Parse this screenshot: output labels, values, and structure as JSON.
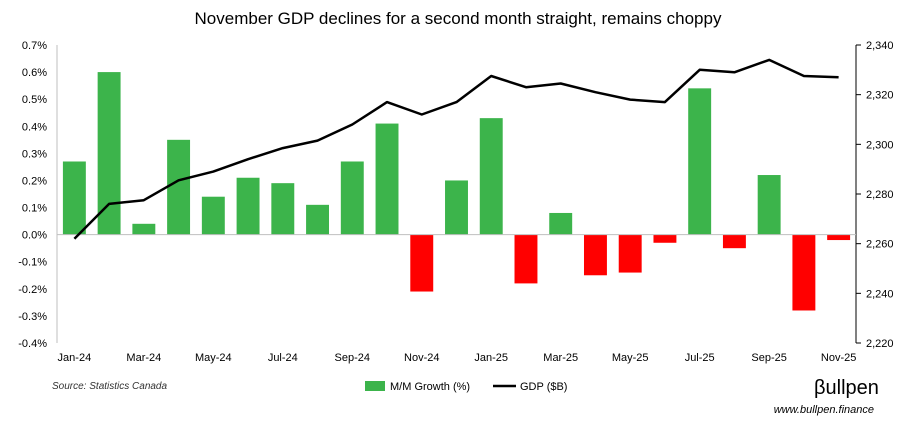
{
  "chart_data": {
    "type": "bar+line",
    "title": "November GDP declines for a second month straight, remains choppy",
    "categories": [
      "Jan-24",
      "Feb-24",
      "Mar-24",
      "Apr-24",
      "May-24",
      "Jun-24",
      "Jul-24",
      "Aug-24",
      "Sep-24",
      "Oct-24",
      "Nov-24",
      "Dec-24",
      "Jan-25",
      "Feb-25",
      "Mar-25",
      "Apr-25",
      "May-25",
      "Jun-25",
      "Jul-25",
      "Aug-25",
      "Sep-25",
      "Oct-25",
      "Nov-25"
    ],
    "x_tick_labels": [
      "Jan-24",
      "Mar-24",
      "May-24",
      "Jul-24",
      "Sep-24",
      "Nov-24",
      "Jan-25",
      "Mar-25",
      "May-25",
      "Jul-25",
      "Sep-25",
      "Nov-25"
    ],
    "series": [
      {
        "name": "M/M Growth (%)",
        "type": "bar",
        "axis": "left",
        "values": [
          0.27,
          0.6,
          0.04,
          0.35,
          0.14,
          0.21,
          0.19,
          0.11,
          0.27,
          0.41,
          -0.21,
          0.2,
          0.43,
          -0.18,
          0.08,
          -0.15,
          -0.14,
          -0.03,
          0.54,
          -0.05,
          0.22,
          -0.28,
          -0.02
        ]
      },
      {
        "name": "GDP ($B)",
        "type": "line",
        "axis": "right",
        "values": [
          2262,
          2276,
          2277.5,
          2285.5,
          2289,
          2294,
          2298.5,
          2301.5,
          2308,
          2317,
          2312,
          2317,
          2327.5,
          2323,
          2324.5,
          2321,
          2318,
          2317,
          2330,
          2329,
          2334,
          2327.5,
          2327
        ]
      }
    ],
    "y_left": {
      "min": -0.4,
      "max": 0.7,
      "step": 0.1,
      "tick_labels": [
        "0.7%",
        "0.6%",
        "0.5%",
        "0.4%",
        "0.3%",
        "0.2%",
        "0.1%",
        "0.0%",
        "-0.1%",
        "-0.2%",
        "-0.3%",
        "-0.4%"
      ]
    },
    "y_right": {
      "min": 2220,
      "max": 2340,
      "step": 20,
      "tick_labels": [
        "2,340",
        "2,320",
        "2,300",
        "2,280",
        "2,260",
        "2,240",
        "2,220"
      ]
    },
    "colors": {
      "positive": "#3cb44b",
      "negative": "#ff0000",
      "line": "#000000"
    },
    "legend": {
      "placement": "bottom-center"
    },
    "grid": false
  },
  "source": "Source: Statistics Canada",
  "brand": "βullpen",
  "url": "www.bullpen.finance"
}
